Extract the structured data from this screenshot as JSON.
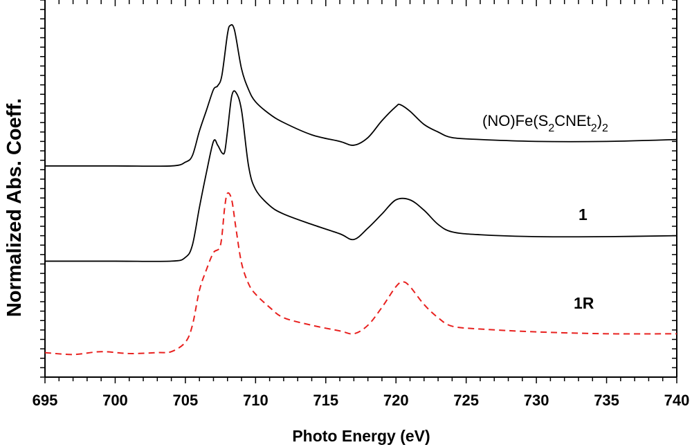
{
  "chart_data": {
    "type": "line",
    "title": "",
    "xlabel": "Photo Energy (eV)",
    "ylabel": "Normalized Abs. Coeff.",
    "xlim": [
      695,
      740
    ],
    "ylim": [
      0,
      40
    ],
    "x_ticks": [
      "695",
      "700",
      "705",
      "710",
      "715",
      "720",
      "725",
      "730",
      "735",
      "740"
    ],
    "grid": false,
    "series": [
      {
        "name": "(NO)Fe(S2CNEt2)2",
        "label_main": "(NO)Fe(S",
        "sub1": "2",
        "label_mid": "CNEt",
        "sub2": "2",
        "label_close": ")",
        "sub3": "2",
        "color": "#000000",
        "dash": "solid",
        "x": [
          695,
          700,
          704,
          705,
          705.5,
          706,
          706.5,
          707,
          707.3,
          707.6,
          708,
          708.2,
          708.5,
          709,
          709.5,
          710,
          711,
          712,
          714,
          716,
          717,
          718,
          719,
          720,
          720.3,
          721,
          722,
          723,
          724,
          726,
          730,
          735,
          740
        ],
        "y": [
          22.4,
          22.4,
          22.4,
          22.8,
          23.5,
          26.1,
          28.3,
          30.5,
          30.9,
          32.0,
          36.4,
          37.3,
          36.8,
          32.7,
          30.5,
          29.2,
          27.9,
          27.0,
          25.7,
          25.0,
          24.6,
          25.4,
          27.2,
          28.7,
          28.9,
          28.2,
          26.8,
          26.0,
          25.4,
          25.2,
          25.0,
          25.0,
          25.2
        ]
      },
      {
        "name": "1",
        "color": "#000000",
        "dash": "solid",
        "x": [
          695,
          700,
          704,
          705,
          705.5,
          706,
          706.5,
          707,
          707.3,
          707.6,
          707.8,
          708,
          708.3,
          708.6,
          709,
          709.5,
          710,
          711,
          712,
          714,
          716,
          717,
          718,
          719,
          720,
          721,
          722,
          723,
          724,
          726,
          730,
          735,
          740
        ],
        "y": [
          12.3,
          12.3,
          12.3,
          12.7,
          14.0,
          18.0,
          21.7,
          25.0,
          24.6,
          23.8,
          23.9,
          26.1,
          29.8,
          30.2,
          28.3,
          22.4,
          19.9,
          18.2,
          17.3,
          16.2,
          15.2,
          14.6,
          15.8,
          17.3,
          18.8,
          18.8,
          17.7,
          16.2,
          15.4,
          15.1,
          14.9,
          14.9,
          15.0
        ]
      },
      {
        "name": "1R",
        "color": "#e8201e",
        "dash": "dashed",
        "x": [
          695,
          697,
          699,
          701,
          703,
          704,
          705,
          705.5,
          706,
          706.5,
          707,
          707.5,
          707.8,
          708,
          708.3,
          708.6,
          709,
          709.5,
          710,
          711,
          712,
          714,
          716,
          717,
          718,
          719,
          720,
          720.5,
          721,
          722,
          723,
          724,
          726,
          730,
          735,
          740
        ],
        "y": [
          2.6,
          2.4,
          2.7,
          2.5,
          2.6,
          2.7,
          3.7,
          5.5,
          9.2,
          11.4,
          13.2,
          14.0,
          18.0,
          19.5,
          18.8,
          15.8,
          12.1,
          9.9,
          8.8,
          7.4,
          6.3,
          5.5,
          4.9,
          4.6,
          5.5,
          7.4,
          9.6,
          10.1,
          9.6,
          7.7,
          6.3,
          5.4,
          5.1,
          4.8,
          4.6,
          4.6
        ]
      }
    ]
  }
}
